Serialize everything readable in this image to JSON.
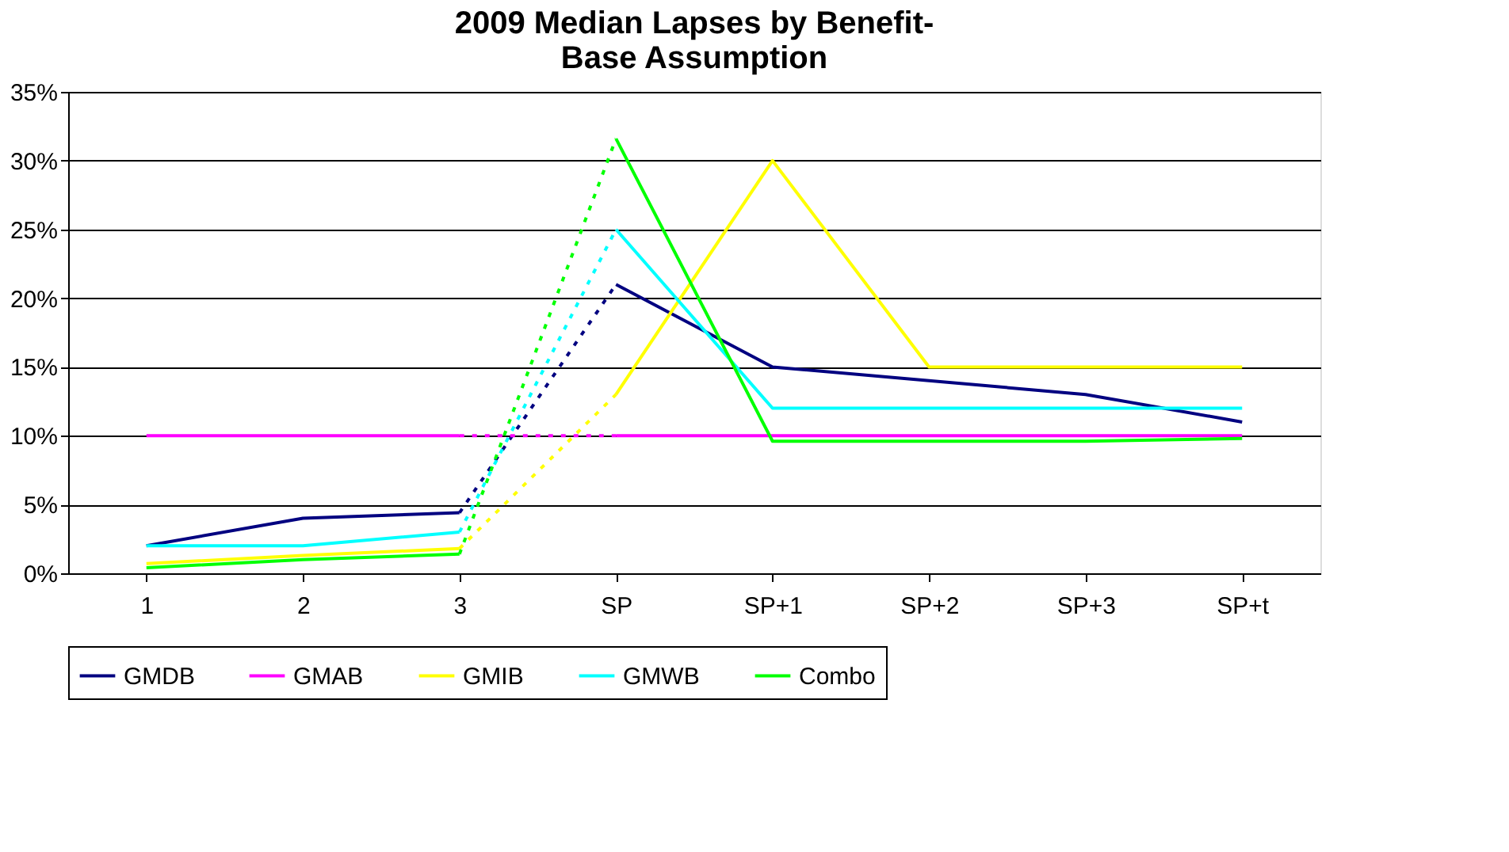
{
  "chart_data": {
    "type": "line",
    "title": "2009 Median Lapses by Benefit-\nBase Assumption",
    "categories": [
      "1",
      "2",
      "3",
      "SP",
      "SP+1",
      "SP+2",
      "SP+3",
      "SP+t"
    ],
    "ylim": [
      0,
      35
    ],
    "yticks": [
      {
        "value": 0,
        "label": "0%"
      },
      {
        "value": 5,
        "label": "5%"
      },
      {
        "value": 10,
        "label": "10%"
      },
      {
        "value": 15,
        "label": "15%"
      },
      {
        "value": 20,
        "label": "20%"
      },
      {
        "value": 25,
        "label": "25%"
      },
      {
        "value": 30,
        "label": "30%"
      },
      {
        "value": 35,
        "label": "35%"
      }
    ],
    "grid": "y",
    "legend": "bottom",
    "marker": "none",
    "series": [
      {
        "name": "GMDB",
        "color": "#000080",
        "line_style": "solid",
        "values": [
          2,
          4,
          4.4,
          null,
          null,
          null,
          null,
          null
        ]
      },
      {
        "name": "GMAB",
        "color": "#ff00ff",
        "line_style": "solid",
        "values": [
          10,
          10,
          10,
          null,
          null,
          null,
          null,
          null
        ]
      },
      {
        "name": "GMIB",
        "color": "#ffff00",
        "line_style": "solid",
        "values": [
          0.7,
          1.3,
          1.8,
          null,
          null,
          null,
          null,
          null
        ]
      },
      {
        "name": "GMWB",
        "color": "#00ffff",
        "line_style": "solid",
        "values": [
          2,
          2,
          3,
          null,
          null,
          null,
          null,
          null
        ]
      },
      {
        "name": "Combo",
        "color": "#00ff00",
        "line_style": "solid",
        "values": [
          0.4,
          1,
          1.4,
          null,
          null,
          null,
          null,
          null
        ]
      },
      {
        "color": "#000080",
        "line_style": "dotted",
        "values": [
          null,
          null,
          4.4,
          21,
          null,
          null,
          null,
          null
        ]
      },
      {
        "color": "#ff00ff",
        "line_style": "dotted",
        "values": [
          null,
          null,
          10,
          10,
          null,
          null,
          null,
          null
        ]
      },
      {
        "color": "#ffff00",
        "line_style": "dotted",
        "values": [
          null,
          null,
          1.8,
          13,
          null,
          null,
          null,
          null
        ]
      },
      {
        "color": "#00ffff",
        "line_style": "dotted",
        "values": [
          null,
          null,
          3,
          25,
          null,
          null,
          null,
          null
        ]
      },
      {
        "color": "#00ff00",
        "line_style": "dotted",
        "values": [
          null,
          null,
          1.4,
          31.6,
          null,
          null,
          null,
          null
        ]
      },
      {
        "color": "#000080",
        "line_style": "solid",
        "values": [
          null,
          null,
          null,
          21,
          15,
          14,
          13,
          11
        ]
      },
      {
        "color": "#ff00ff",
        "line_style": "solid",
        "values": [
          null,
          null,
          null,
          10,
          10,
          10,
          10,
          10
        ]
      },
      {
        "color": "#ffff00",
        "line_style": "solid",
        "values": [
          null,
          null,
          null,
          13,
          30,
          15,
          15,
          15
        ]
      },
      {
        "color": "#00ffff",
        "line_style": "solid",
        "values": [
          null,
          null,
          null,
          25,
          12,
          12,
          12,
          12
        ]
      },
      {
        "color": "#00ff00",
        "line_style": "solid",
        "values": [
          null,
          null,
          null,
          31.6,
          9.6,
          9.6,
          9.6,
          9.8
        ]
      }
    ]
  }
}
